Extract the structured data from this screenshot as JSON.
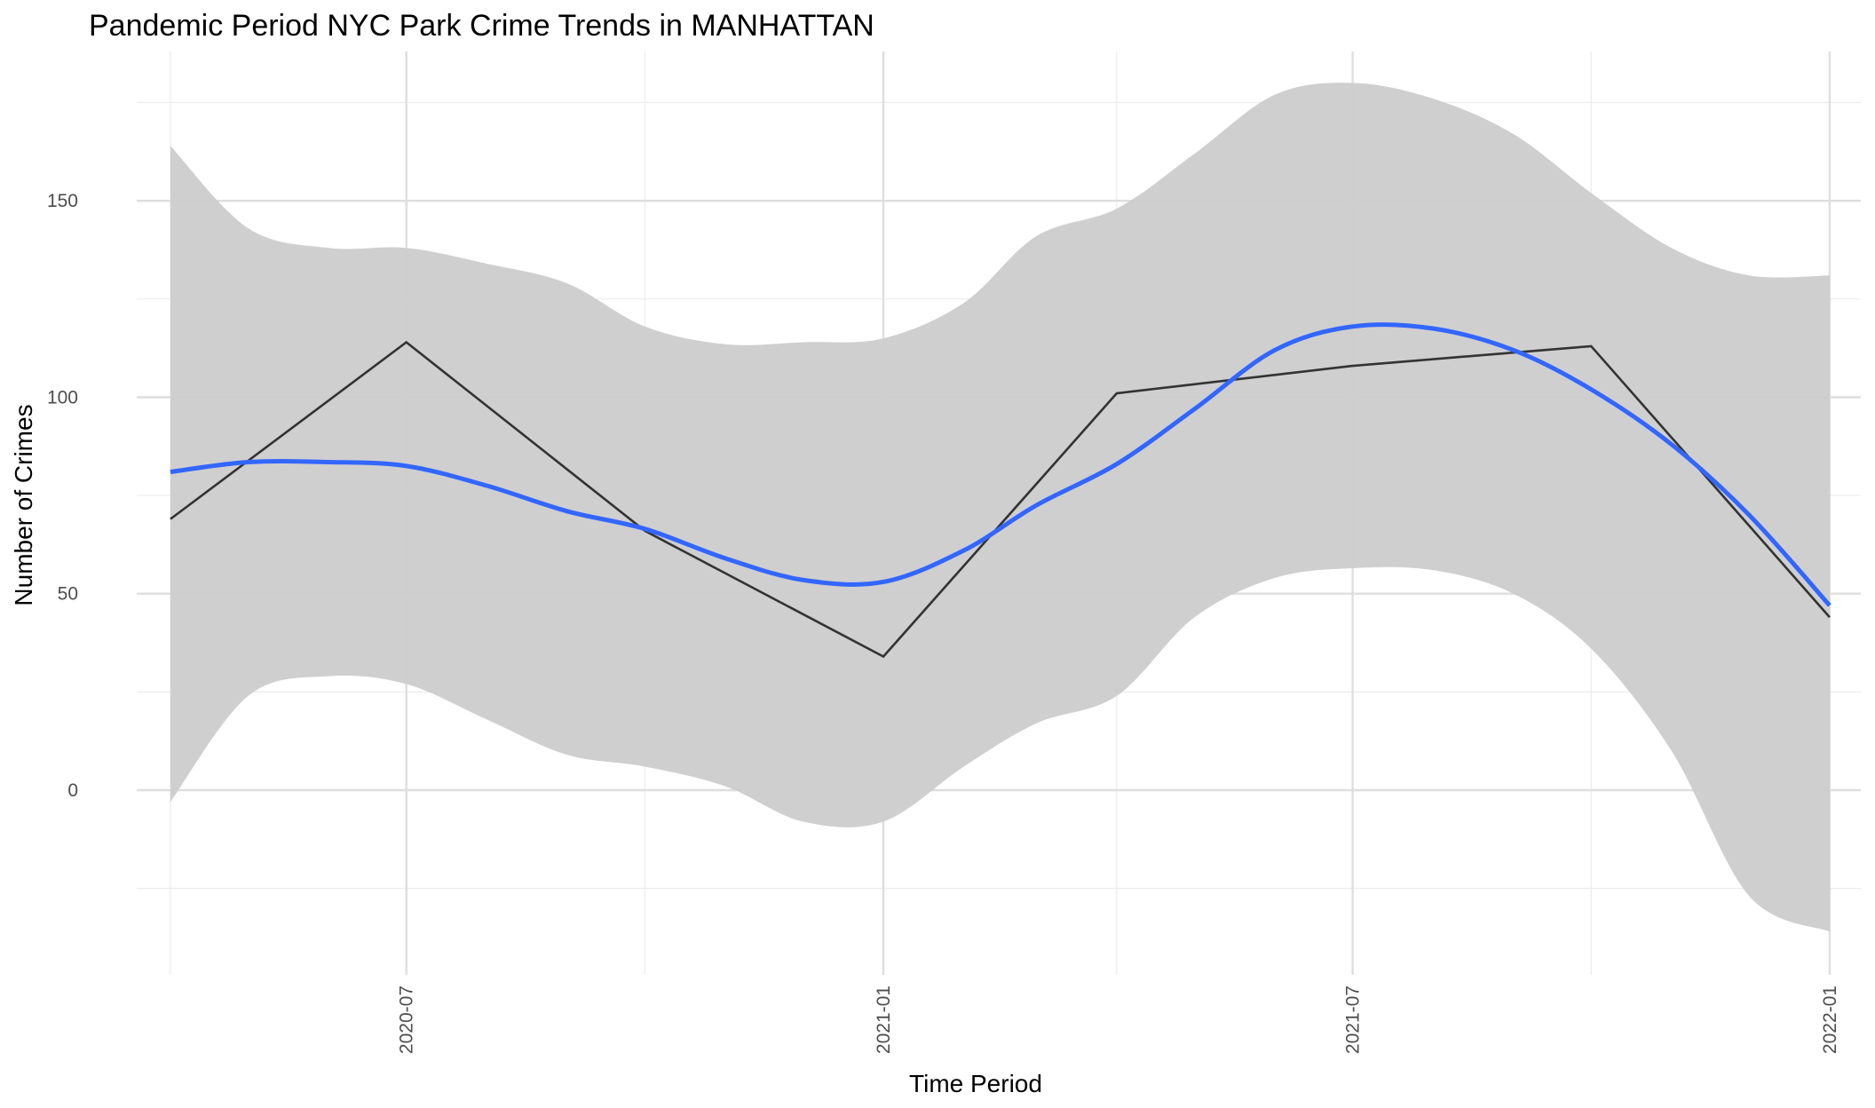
{
  "chart_data": {
    "type": "line",
    "title": "Pandemic Period NYC Park Crime Trends in MANHATTAN",
    "xlabel": "Time Period",
    "ylabel": "Number of Crimes",
    "x_tick_labels": [
      "2020-07",
      "2021-01",
      "2021-07",
      "2022-01"
    ],
    "x_ticks": [
      "2020-07-01",
      "2021-01-01",
      "2021-07-01",
      "2022-01-01"
    ],
    "x_minor_ticks": [
      "2020-04-01",
      "2020-10-01",
      "2021-04-01",
      "2021-10-01"
    ],
    "y_ticks": [
      0,
      50,
      100,
      150
    ],
    "y_tick_labels": [
      "0",
      "50",
      "100",
      "150"
    ],
    "x_range": [
      "2020-03-19",
      "2022-01-13"
    ],
    "ylim": [
      -47,
      188
    ],
    "grid": true,
    "legend": "none",
    "series": [
      {
        "kind": "line",
        "color": "#333333",
        "x": [
          "2020-04-01",
          "2020-07-01",
          "2020-10-01",
          "2021-01-01",
          "2021-04-01",
          "2021-07-01",
          "2021-10-01",
          "2022-01-01"
        ],
        "y": [
          69,
          114,
          66,
          34,
          101,
          108,
          113,
          44
        ]
      },
      {
        "kind": "smooth",
        "color": "#3366ff",
        "band_color": "#cccccc",
        "x": [
          "2020-04-01",
          "2020-05-01",
          "2020-06-01",
          "2020-07-01",
          "2020-08-01",
          "2020-09-01",
          "2020-10-01",
          "2020-11-01",
          "2020-12-01",
          "2021-01-01",
          "2021-02-01",
          "2021-03-01",
          "2021-04-01",
          "2021-05-01",
          "2021-06-01",
          "2021-07-01",
          "2021-08-01",
          "2021-09-01",
          "2021-10-01",
          "2021-11-01",
          "2021-12-01",
          "2022-01-01"
        ],
        "y": [
          81,
          83.5,
          83.5,
          82.5,
          77.5,
          71,
          66.5,
          59,
          53.5,
          53,
          61,
          72.5,
          83,
          97,
          112,
          118,
          117.5,
          112,
          102,
          88,
          70,
          47
        ],
        "band_lower": [
          -3,
          24,
          29,
          27,
          18,
          9,
          6,
          1,
          -8,
          -8,
          6,
          17,
          24,
          44,
          54,
          56.5,
          56,
          50,
          36,
          10,
          -27,
          -36
        ],
        "band_upper": [
          164,
          143,
          138,
          138,
          134,
          129,
          118,
          113.5,
          114,
          115,
          124,
          141,
          148,
          162,
          177,
          180,
          176,
          167,
          152,
          138,
          131,
          131
        ]
      }
    ]
  }
}
